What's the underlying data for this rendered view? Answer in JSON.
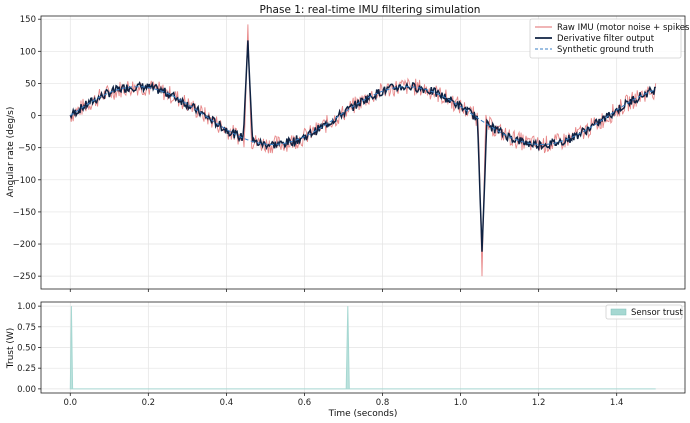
{
  "chart_data": [
    {
      "type": "line",
      "title": "Phase 1: real-time IMU filtering simulation",
      "xlabel": "",
      "ylabel": "Angular rate (deg/s)",
      "xlim": [
        -0.075,
        1.575
      ],
      "ylim": [
        -270,
        155
      ],
      "yticks": [
        150,
        100,
        50,
        0,
        -50,
        -100,
        -150,
        -200,
        -250
      ],
      "yticklabels": [
        "150",
        "100",
        "50",
        "0",
        "−50",
        "−100",
        "−150",
        "−200",
        "−250"
      ],
      "grid": true,
      "legend_position": "top-right",
      "legend": [
        "Raw IMU (motor noise + spikes)",
        "Derivative filter output",
        "Synthetic ground truth"
      ],
      "duration_s": 1.5,
      "ground_truth": {
        "form": "sine",
        "amplitude": 45,
        "frequency_hz": 1.45
      },
      "spikes": [
        {
          "t": 0.455,
          "raw_peak": 142,
          "filtered_peak": 117
        },
        {
          "t": 1.055,
          "raw_peak": -250,
          "filtered_peak": -212
        }
      ],
      "series": [
        {
          "name": "Raw IMU (motor noise + spikes)",
          "color": "#e8898a",
          "noise_amplitude": 14
        },
        {
          "name": "Derivative filter output",
          "color": "#0f2242",
          "noise_amplitude": 7
        },
        {
          "name": "Synthetic ground truth",
          "color": "#3a7fc4",
          "style": "dashed"
        }
      ]
    },
    {
      "type": "area",
      "xlabel": "Time (seconds)",
      "ylabel": "Trust (W)",
      "xlim": [
        -0.075,
        1.575
      ],
      "ylim": [
        -0.05,
        1.05
      ],
      "xticks": [
        0.0,
        0.2,
        0.4,
        0.6,
        0.8,
        1.0,
        1.2,
        1.4
      ],
      "xticklabels": [
        "0.0",
        "0.2",
        "0.4",
        "0.6",
        "0.8",
        "1.0",
        "1.2",
        "1.4"
      ],
      "yticks": [
        1.0,
        0.75,
        0.5,
        0.25,
        0.0
      ],
      "yticklabels": [
        "1.00",
        "0.75",
        "0.50",
        "0.25",
        "0.00"
      ],
      "grid": true,
      "legend_position": "top-right",
      "series": [
        {
          "name": "Sensor trust",
          "color": "#a6d8d2",
          "points": [
            [
              0.0,
              0.0
            ],
            [
              0.003,
              1.0
            ],
            [
              0.006,
              0.0
            ],
            [
              0.707,
              0.0
            ],
            [
              0.711,
              1.0
            ],
            [
              0.715,
              0.0
            ],
            [
              1.5,
              0.0
            ]
          ]
        }
      ]
    }
  ]
}
